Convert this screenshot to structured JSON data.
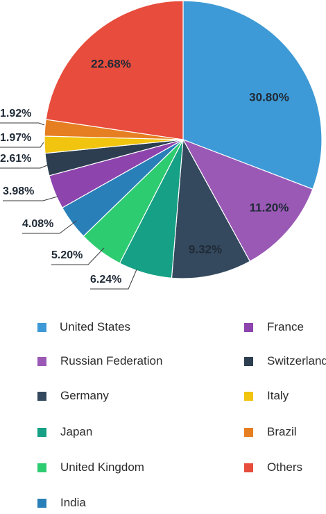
{
  "chart_data": {
    "type": "pie",
    "categories": [
      "United States",
      "Russian Federation",
      "Germany",
      "Japan",
      "United Kingdom",
      "India",
      "France",
      "Switzerland",
      "Italy",
      "Brazil",
      "Others"
    ],
    "values": [
      30.8,
      11.2,
      9.32,
      6.24,
      5.2,
      4.08,
      3.98,
      2.61,
      1.97,
      1.92,
      22.68
    ],
    "labels": [
      "30.80%",
      "11.20%",
      "9.32%",
      "6.24%",
      "5.20%",
      "4.08%",
      "3.98%",
      "2.61%",
      "1.97%",
      "1.92%",
      "22.68%"
    ],
    "colors": [
      "#3e9ad6",
      "#9b59b6",
      "#34495e",
      "#16a085",
      "#2ecc71",
      "#2980b9",
      "#8e44ad",
      "#2c3e50",
      "#f1c40f",
      "#e67e22",
      "#e74c3c"
    ],
    "legend_placement": "bottom",
    "legend": [
      {
        "label": " United States",
        "color": "#3e9ad6"
      },
      {
        "label": "France",
        "color": "#8e44ad"
      },
      {
        "label": "Russian Federation",
        "color": "#9b59b6"
      },
      {
        "label": "Switzerland",
        "color": "#2c3e50"
      },
      {
        "label": "Germany",
        "color": "#34495e"
      },
      {
        "label": "Italy",
        "color": "#f1c40f"
      },
      {
        "label": "Japan",
        "color": "#16a085"
      },
      {
        "label": "Brazil",
        "color": "#e67e22"
      },
      {
        "label": "United Kingdom",
        "color": "#2ecc71"
      },
      {
        "label": "Others",
        "color": "#e74c3c"
      },
      {
        "label": "India",
        "color": "#2980b9"
      }
    ]
  }
}
